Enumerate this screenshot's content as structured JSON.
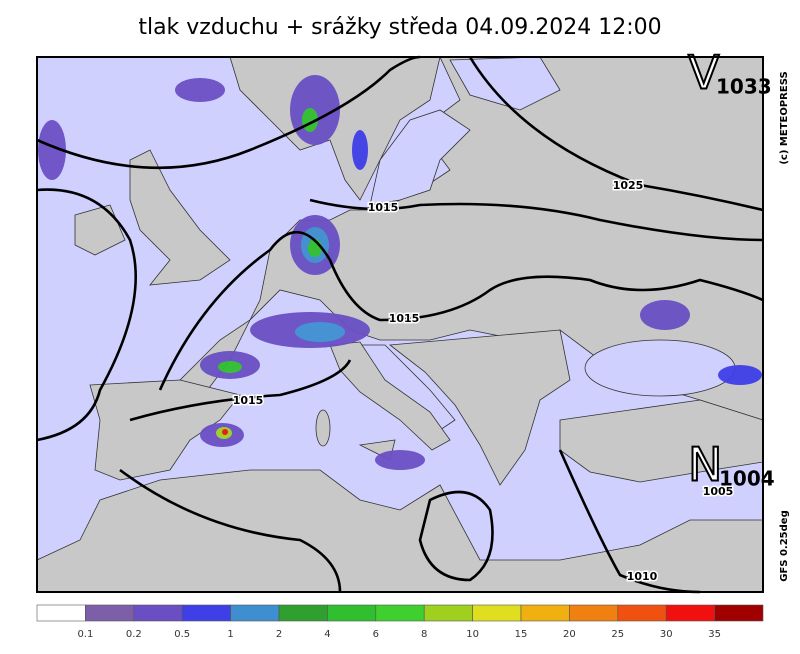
{
  "header": {
    "title": "tlak vzduchu + srážky  středa 04.09.2024 12:00"
  },
  "pressure_centers": [
    {
      "letter": "V",
      "value": 1033
    },
    {
      "letter": "N",
      "value": 1004
    }
  ],
  "isobar_labels": [
    1025,
    1015,
    1015,
    1015,
    1010,
    1005
  ],
  "credits": {
    "copyright": "(c) METEOPRESS",
    "model": "GFS 0.25deg"
  },
  "legend": {
    "colors": [
      "#ffffff",
      "#7d5ea8",
      "#6a4fc4",
      "#3f3fe8",
      "#3f8fd0",
      "#2f9f2f",
      "#2fbf2f",
      "#3fd02f",
      "#9fd01f",
      "#dfdf1f",
      "#f0b010",
      "#f08010",
      "#f05010",
      "#f01010",
      "#a00000"
    ],
    "labels": [
      0.1,
      0.2,
      0.5,
      1,
      2,
      4,
      6,
      8,
      10,
      15,
      20,
      25,
      30,
      35
    ]
  }
}
